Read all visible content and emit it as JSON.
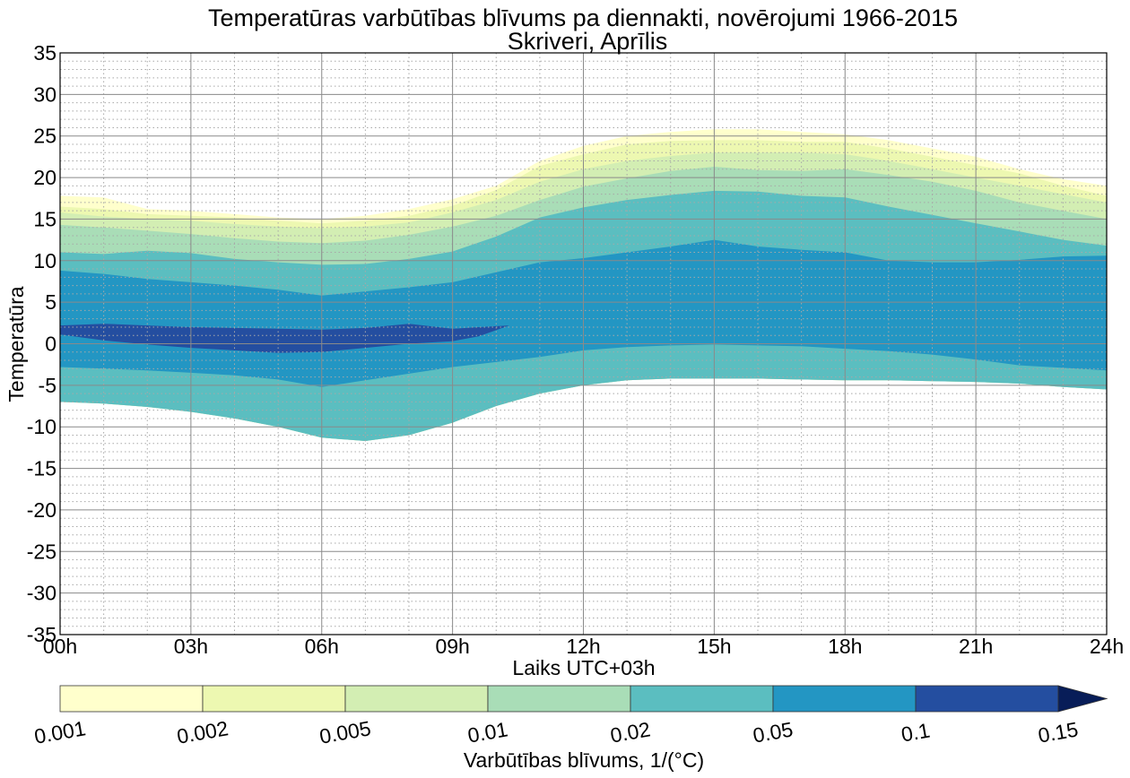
{
  "chart_data": {
    "type": "contour",
    "title": "Temperatūras varbūtības blīvums pa diennakti, novērojumi 1966-2015",
    "subtitle": "Skriveri, Aprīlis",
    "xlabel": "Laiks UTC+03h",
    "ylabel": "Temperatūra",
    "x_ticks": [
      "00h",
      "03h",
      "06h",
      "09h",
      "12h",
      "15h",
      "18h",
      "21h",
      "24h"
    ],
    "x_tick_values": [
      0,
      3,
      6,
      9,
      12,
      15,
      18,
      21,
      24
    ],
    "y_ticks": [
      "35",
      "30",
      "25",
      "20",
      "15",
      "10",
      "5",
      "0",
      "-5",
      "-10",
      "-15",
      "-20",
      "-25",
      "-30",
      "-35"
    ],
    "y_tick_values": [
      35,
      30,
      25,
      20,
      15,
      10,
      5,
      0,
      -5,
      -10,
      -15,
      -20,
      -25,
      -30,
      -35
    ],
    "xlim": [
      0,
      24
    ],
    "ylim": [
      -35,
      35
    ],
    "grid": true,
    "hours": [
      0,
      1,
      2,
      3,
      4,
      5,
      6,
      7,
      8,
      9,
      10,
      11,
      12,
      13,
      14,
      15,
      16,
      17,
      18,
      19,
      20,
      21,
      22,
      23,
      24
    ],
    "level_bounds": [
      0.001,
      0.002,
      0.005,
      0.01,
      0.02,
      0.05,
      0.1,
      0.15
    ],
    "level_colors": [
      "#ffffcc",
      "#edf8b1",
      "#d3eeb3",
      "#a9ddb7",
      "#5bbec0",
      "#2396c3",
      "#244ea0"
    ],
    "bands": [
      {
        "level": "0.001",
        "color": "#ffffcc",
        "upper": [
          17.8,
          17.6,
          16.2,
          16.0,
          15.6,
          15.2,
          15.0,
          15.4,
          16.2,
          17.4,
          19.0,
          22.0,
          23.8,
          25.0,
          25.5,
          25.8,
          25.8,
          25.5,
          25.2,
          24.5,
          23.5,
          22.5,
          21.0,
          19.8,
          19.0
        ],
        "lower": [
          -7.0,
          -7.2,
          -7.6,
          -8.2,
          -9.0,
          -10.0,
          -11.3,
          -11.7,
          -11.0,
          -9.5,
          -7.5,
          -6.0,
          -5.0,
          -4.4,
          -4.2,
          -4.2,
          -4.2,
          -4.3,
          -4.4,
          -4.4,
          -4.5,
          -4.6,
          -4.8,
          -5.2,
          -5.5
        ]
      },
      {
        "level": "0.002",
        "color": "#edf8b1",
        "upper": [
          16.5,
          16.2,
          15.6,
          15.4,
          15.2,
          14.8,
          14.5,
          14.8,
          15.4,
          16.6,
          18.5,
          21.4,
          22.8,
          24.0,
          24.4,
          24.5,
          24.5,
          24.3,
          24.3,
          23.5,
          22.5,
          21.5,
          20.5,
          19.0,
          17.8
        ]
      },
      {
        "level": "0.005",
        "color": "#d3eeb3",
        "upper": [
          15.8,
          15.3,
          15.0,
          14.8,
          14.4,
          14.1,
          13.9,
          14.1,
          14.6,
          15.8,
          17.3,
          19.5,
          21.0,
          22.0,
          22.6,
          23.0,
          23.0,
          23.0,
          22.8,
          22.0,
          21.0,
          20.0,
          19.0,
          18.0,
          17.0
        ]
      },
      {
        "level": "0.01",
        "color": "#a9ddb7",
        "upper": [
          14.3,
          14.0,
          13.6,
          13.2,
          12.7,
          12.3,
          12.1,
          12.4,
          13.1,
          14.1,
          15.4,
          17.3,
          18.9,
          19.9,
          20.8,
          21.3,
          20.9,
          20.8,
          21.0,
          20.3,
          19.5,
          18.4,
          17.0,
          16.0,
          15.0
        ]
      },
      {
        "level": "0.02",
        "color": "#5bbec0",
        "upper": [
          11.0,
          10.8,
          11.2,
          10.9,
          10.2,
          9.8,
          9.5,
          9.6,
          10.2,
          11.1,
          12.9,
          15.2,
          16.4,
          17.3,
          17.9,
          18.4,
          18.3,
          17.8,
          17.6,
          16.5,
          15.5,
          14.5,
          13.5,
          12.5,
          11.8
        ]
      },
      {
        "level": "0.05",
        "color": "#2396c3",
        "upper": [
          8.8,
          8.4,
          7.8,
          7.4,
          7.0,
          6.5,
          5.8,
          6.3,
          6.8,
          7.4,
          8.6,
          9.8,
          10.3,
          11.0,
          11.7,
          12.5,
          11.7,
          11.3,
          11.0,
          10.0,
          9.8,
          9.8,
          10.1,
          10.5,
          10.6
        ],
        "lower": [
          -2.8,
          -3.0,
          -3.2,
          -3.5,
          -3.8,
          -4.3,
          -5.2,
          -4.4,
          -3.6,
          -2.8,
          -2.2,
          -1.6,
          -0.8,
          -0.4,
          -0.2,
          -0.1,
          -0.2,
          -0.3,
          -0.6,
          -0.9,
          -1.3,
          -1.9,
          -2.6,
          -2.9,
          -3.2
        ]
      },
      {
        "level": "0.1",
        "color": "#244ea0",
        "upper": [
          2.2,
          2.4,
          2.2,
          2.0,
          1.9,
          1.8,
          1.7,
          1.9,
          2.4,
          1.8,
          2.0,
          2.2
        ],
        "lower": [
          1.1,
          0.4,
          -0.1,
          -0.5,
          -0.8,
          -1.1,
          -1.0,
          -0.5,
          0.0,
          0.3,
          0.9,
          2.2
        ],
        "hours": [
          0,
          1,
          2,
          3,
          4,
          5,
          6,
          7,
          8,
          9,
          9.6,
          10.3
        ]
      }
    ],
    "colorbar": {
      "label": "Varbūtības blīvums, 1/(°C)",
      "tick_labels": [
        "0.001",
        "0.002",
        "0.005",
        "0.01",
        "0.02",
        "0.05",
        "0.1",
        "0.15"
      ],
      "extend": "max",
      "extend_color": "#081d58"
    }
  }
}
